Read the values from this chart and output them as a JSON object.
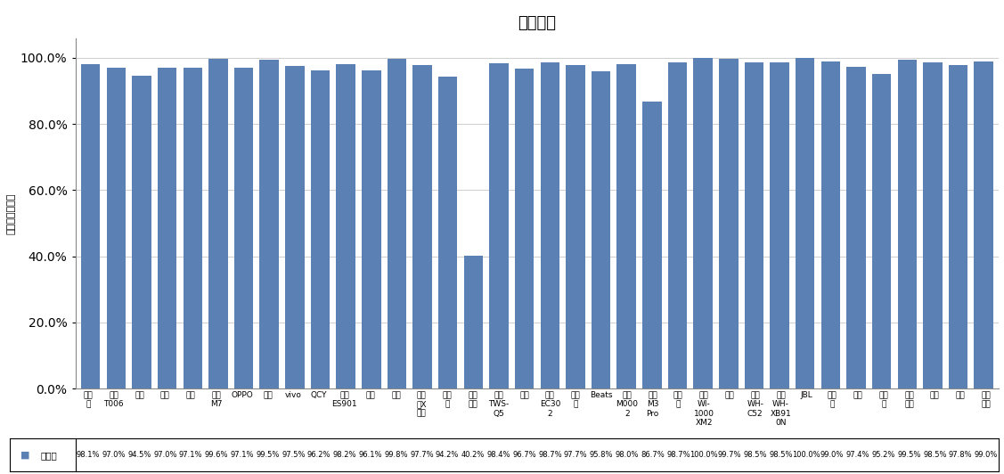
{
  "title": "通话降噪",
  "ylabel": "主观测试正确率",
  "categories": [
    "漫步\n者",
    "华为\nT006",
    "苹果",
    "小米",
    "倍思",
    "酷狗\nM7",
    "OPPO",
    "荣耀",
    "vivo",
    "QCY",
    "万魔\nES901",
    "小度",
    "蜡蜡",
    "漫步\n者X\n行心",
    "潮智\n能",
    "科大\n讯飞",
    "绍曼\nTWS-\nQ5",
    "三星",
    "万魔\nEC30\n2",
    "搜狐\n听",
    "Beats",
    "华为\nM000\n2",
    "酷狗\nM3\nPro",
    "爱国\n者",
    "索尼\nWI-\n1000\nXM2",
    "山水",
    "绍曼\nWH-\nC52",
    "索尼\nWH-\nXB91\n0N",
    "JBL",
    "飞利\n浦",
    "联想",
    "第三\n角",
    "森海\n塞尔",
    "博士",
    "索爱",
    "西伯\n利亚"
  ],
  "values": [
    98.1,
    97.0,
    94.5,
    97.0,
    97.1,
    99.6,
    97.1,
    99.5,
    97.5,
    96.2,
    98.2,
    96.1,
    99.8,
    97.7,
    94.2,
    40.2,
    98.4,
    96.7,
    98.7,
    97.7,
    95.8,
    98.0,
    86.7,
    98.7,
    100.0,
    99.7,
    98.5,
    98.5,
    100.0,
    99.0,
    97.4,
    95.2,
    99.5,
    98.5,
    97.8,
    99.0
  ],
  "bar_color": "#5b80b4",
  "legend_label": "正确率",
  "ytick_labels": [
    "0.0%",
    "20.0%",
    "40.0%",
    "60.0%",
    "80.0%",
    "100.0%"
  ],
  "yticks": [
    0,
    20,
    40,
    60,
    80,
    100
  ],
  "title_fontsize": 13,
  "ylabel_fontsize": 8,
  "tick_fontsize": 8,
  "xlabel_fontsize": 6.5,
  "value_fontsize": 6.0,
  "legend_fontsize": 7.5
}
